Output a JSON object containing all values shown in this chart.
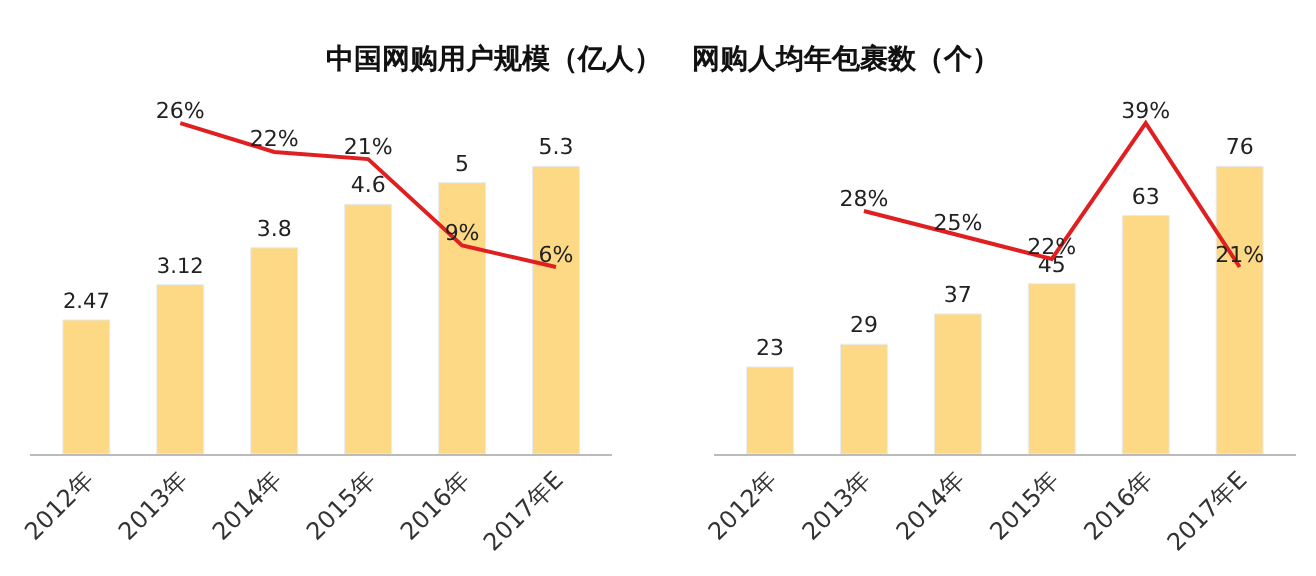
{
  "chart_data": [
    {
      "type": "bar",
      "title": "中国网购用户规模（亿人）",
      "categories": [
        "2012年",
        "2013年",
        "2014年",
        "2015年",
        "2016年",
        "2017年E"
      ],
      "series": [
        {
          "color": "#fdd985",
          "values": [
            2.47,
            3.12,
            3.8,
            4.6,
            5,
            5.3
          ],
          "data_labels": true
        },
        {
          "type": "line",
          "axis": "y2",
          "color": "#e02020",
          "values": [
            null,
            26,
            22,
            21,
            9,
            6
          ],
          "value_labels": [
            null,
            "26%",
            "22%",
            "21%",
            "9%",
            "6%"
          ]
        }
      ]
    },
    {
      "type": "bar",
      "title": "网购人均年包裹数（个）",
      "categories": [
        "2012年",
        "2013年",
        "2014年",
        "2015年",
        "2016年",
        "2017年E"
      ],
      "series": [
        {
          "color": "#fdd985",
          "values": [
            23,
            29,
            37,
            45,
            63,
            76
          ],
          "data_labels": true
        },
        {
          "type": "line",
          "axis": "y2",
          "color": "#e02020",
          "values": [
            null,
            28,
            25,
            22,
            39,
            21
          ],
          "value_labels": [
            null,
            "28%",
            "25%",
            "22%",
            "39%",
            "21%"
          ]
        }
      ]
    }
  ]
}
